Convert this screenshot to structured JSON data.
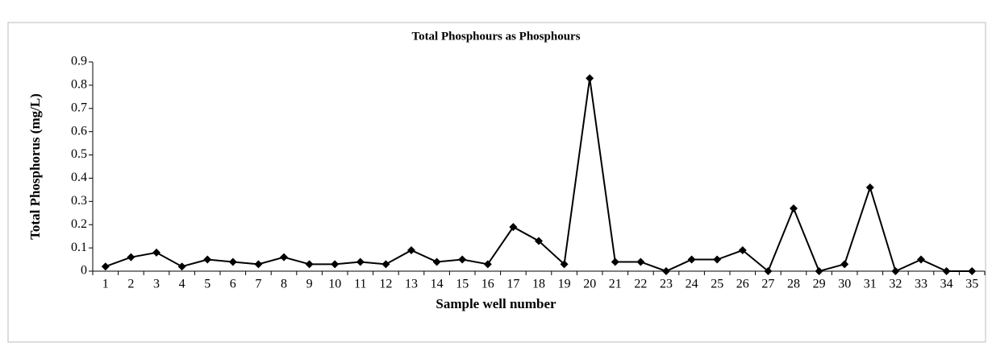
{
  "chart_data": {
    "type": "line",
    "title": "Total Phosphours  as Phosphours",
    "xlabel": "Sample well number",
    "ylabel": "Total  Phosphorus  (mg/L)",
    "categories": [
      "1",
      "2",
      "3",
      "4",
      "5",
      "6",
      "7",
      "8",
      "9",
      "10",
      "11",
      "12",
      "13",
      "14",
      "15",
      "16",
      "17",
      "18",
      "19",
      "20",
      "21",
      "22",
      "23",
      "24",
      "25",
      "26",
      "27",
      "28",
      "29",
      "30",
      "31",
      "32",
      "33",
      "34",
      "35"
    ],
    "values": [
      0.02,
      0.06,
      0.08,
      0.02,
      0.05,
      0.04,
      0.03,
      0.06,
      0.03,
      0.03,
      0.04,
      0.03,
      0.09,
      0.04,
      0.05,
      0.03,
      0.19,
      0.13,
      0.03,
      0.83,
      0.04,
      0.04,
      0,
      0.05,
      0.05,
      0.09,
      0,
      0.27,
      0,
      0.03,
      0.36,
      0,
      0.05,
      0,
      0
    ],
    "color": "#000000",
    "ylim": [
      0,
      0.9
    ],
    "yticks": [
      0,
      0.1,
      0.2,
      0.3,
      0.4,
      0.5,
      0.6,
      0.7,
      0.8,
      0.9
    ],
    "grid": false
  }
}
